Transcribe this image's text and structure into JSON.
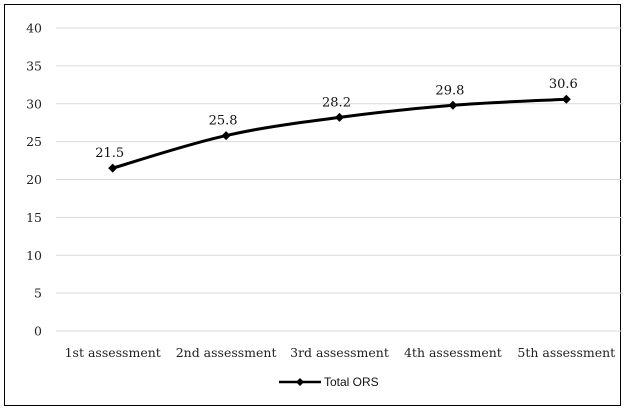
{
  "chart_data": {
    "type": "line",
    "categories": [
      "1st assessment",
      "2nd assessment",
      "3rd assessment",
      "4th assessment",
      "5th assessment"
    ],
    "series": [
      {
        "name": "Total ORS",
        "values": [
          21.5,
          25.8,
          28.2,
          29.8,
          30.6
        ],
        "labels": [
          "21.5",
          "25.8",
          "28.2",
          "29.8",
          "30.6"
        ],
        "color": "#000000",
        "marker": "diamond"
      }
    ],
    "yticks": [
      "0",
      "5",
      "10",
      "15",
      "20",
      "25",
      "30",
      "35",
      "40"
    ],
    "ylim": [
      0,
      40
    ],
    "ystep": 5,
    "grid": true,
    "legend_position": "bottom",
    "gridline_color": "#d9d9d9"
  }
}
